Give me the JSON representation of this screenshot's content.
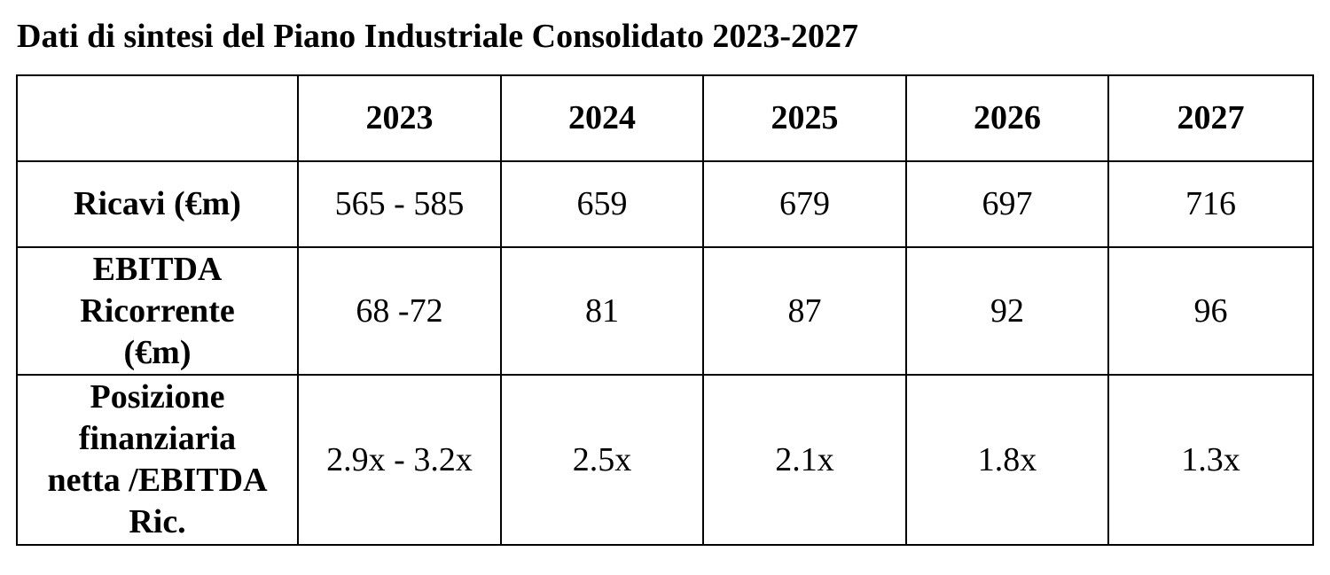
{
  "title": "Dati di sintesi del Piano Industriale Consolidato 2023-2027",
  "table": {
    "columns": [
      "2023",
      "2024",
      "2025",
      "2026",
      "2027"
    ],
    "rows": [
      {
        "label_lines": [
          "Ricavi (€m)"
        ],
        "values": [
          "565 - 585",
          "659",
          "679",
          "697",
          "716"
        ]
      },
      {
        "label_lines": [
          "EBITDA",
          "Ricorrente",
          "(€m)"
        ],
        "values": [
          "68 -72",
          "81",
          "87",
          "92",
          "96"
        ]
      },
      {
        "label_lines": [
          "Posizione",
          "finanziaria",
          "netta /EBITDA",
          "Ric."
        ],
        "values": [
          "2.9x - 3.2x",
          "2.5x",
          "2.1x",
          "1.8x",
          "1.3x"
        ]
      }
    ]
  }
}
